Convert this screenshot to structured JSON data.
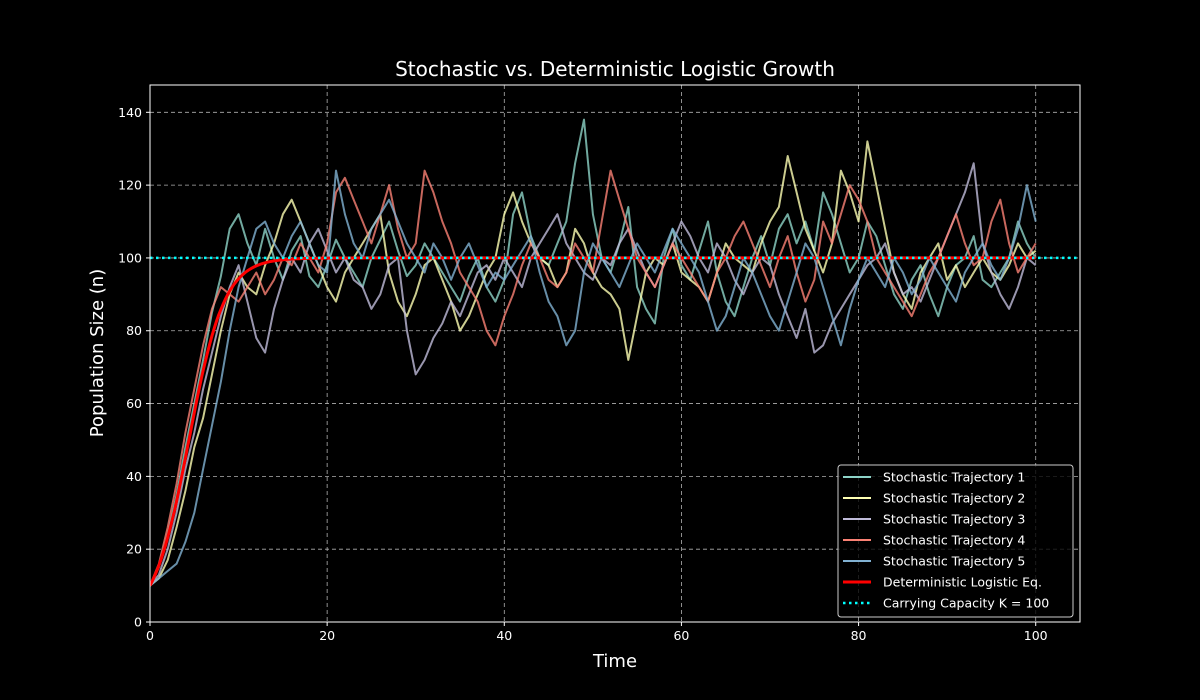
{
  "chart_data": {
    "type": "line",
    "title": "Stochastic vs. Deterministic Logistic Growth",
    "xlabel": "Time",
    "ylabel": "Population Size (n)",
    "xlim": [
      0,
      105
    ],
    "ylim": [
      0,
      147.5
    ],
    "xticks": [
      0,
      20,
      40,
      60,
      80,
      100
    ],
    "yticks": [
      0,
      20,
      40,
      60,
      80,
      100,
      120,
      140
    ],
    "grid": true,
    "legend_position": "lower-right",
    "background": "#000000",
    "deterministic": {
      "name": "Deterministic Logistic Eq.",
      "color": "#ff0000",
      "model": "logistic",
      "n0": 10,
      "r": 0.5,
      "K": 100,
      "t_range": [
        0,
        100
      ]
    },
    "carrying_capacity": {
      "name": "Carrying Capacity K = 100",
      "color": "#00ffff",
      "value": 100,
      "style": "dotted"
    },
    "x": [
      0,
      1,
      2,
      3,
      4,
      5,
      6,
      7,
      8,
      9,
      10,
      11,
      12,
      13,
      14,
      15,
      16,
      17,
      18,
      19,
      20,
      21,
      22,
      23,
      24,
      25,
      26,
      27,
      28,
      29,
      30,
      31,
      32,
      33,
      34,
      35,
      36,
      37,
      38,
      39,
      40,
      41,
      42,
      43,
      44,
      45,
      46,
      47,
      48,
      49,
      50,
      51,
      52,
      53,
      54,
      55,
      56,
      57,
      58,
      59,
      60,
      61,
      62,
      63,
      64,
      65,
      66,
      67,
      68,
      69,
      70,
      71,
      72,
      73,
      74,
      75,
      76,
      77,
      78,
      79,
      80,
      81,
      82,
      83,
      84,
      85,
      86,
      87,
      88,
      89,
      90,
      91,
      92,
      93,
      94,
      95,
      96,
      97,
      98,
      99,
      100
    ],
    "series": [
      {
        "name": "Stochastic Trajectory 1",
        "color": "#8dd3c7",
        "values": [
          10,
          15,
          24,
          35,
          48,
          60,
          72,
          85,
          95,
          108,
          112,
          104,
          98,
          108,
          100,
          94,
          102,
          106,
          95,
          92,
          98,
          105,
          100,
          96,
          92,
          100,
          105,
          110,
          102,
          95,
          98,
          104,
          100,
          96,
          92,
          88,
          95,
          100,
          92,
          88,
          94,
          112,
          118,
          106,
          100,
          98,
          104,
          110,
          126,
          138,
          112,
          100,
          96,
          104,
          114,
          92,
          86,
          82,
          100,
          108,
          98,
          94,
          102,
          110,
          96,
          88,
          84,
          92,
          100,
          106,
          98,
          108,
          112,
          104,
          110,
          102,
          118,
          112,
          104,
          96,
          100,
          110,
          106,
          98,
          90,
          86,
          94,
          98,
          90,
          84,
          92,
          98,
          100,
          106,
          94,
          92,
          96,
          100,
          110,
          104,
          100
        ]
      },
      {
        "name": "Stochastic Trajectory 2",
        "color": "#feffb3",
        "values": [
          10,
          12,
          17,
          26,
          36,
          48,
          56,
          68,
          80,
          90,
          96,
          92,
          90,
          98,
          104,
          112,
          116,
          110,
          104,
          98,
          92,
          88,
          96,
          100,
          104,
          108,
          112,
          96,
          88,
          84,
          90,
          98,
          100,
          94,
          88,
          80,
          84,
          90,
          96,
          100,
          112,
          118,
          110,
          104,
          100,
          98,
          92,
          96,
          108,
          104,
          96,
          92,
          90,
          86,
          72,
          84,
          96,
          100,
          98,
          104,
          96,
          94,
          92,
          88,
          96,
          104,
          100,
          98,
          96,
          104,
          110,
          114,
          128,
          118,
          108,
          102,
          96,
          104,
          124,
          118,
          110,
          132,
          120,
          108,
          96,
          90,
          86,
          96,
          100,
          104,
          94,
          98,
          92,
          96,
          100,
          96,
          94,
          98,
          104,
          100,
          102
        ]
      },
      {
        "name": "Stochastic Trajectory 3",
        "color": "#bfbbd9",
        "values": [
          10,
          13,
          20,
          30,
          42,
          52,
          64,
          74,
          84,
          92,
          98,
          88,
          78,
          74,
          86,
          94,
          100,
          96,
          104,
          108,
          102,
          96,
          100,
          94,
          92,
          86,
          90,
          98,
          100,
          80,
          68,
          72,
          78,
          82,
          88,
          84,
          90,
          96,
          98,
          94,
          100,
          96,
          92,
          100,
          104,
          108,
          112,
          104,
          100,
          96,
          94,
          100,
          98,
          104,
          108,
          102,
          96,
          92,
          98,
          104,
          110,
          106,
          100,
          96,
          104,
          100,
          94,
          90,
          96,
          100,
          98,
          90,
          84,
          78,
          86,
          74,
          76,
          82,
          86,
          90,
          94,
          98,
          100,
          104,
          96,
          90,
          92,
          88,
          94,
          100,
          106,
          112,
          118,
          126,
          104,
          96,
          90,
          86,
          92,
          100,
          98
        ]
      },
      {
        "name": "Stochastic Trajectory 4",
        "color": "#fa8174",
        "values": [
          10,
          16,
          26,
          38,
          52,
          64,
          76,
          86,
          92,
          90,
          88,
          92,
          96,
          90,
          94,
          100,
          98,
          104,
          100,
          96,
          104,
          118,
          122,
          116,
          110,
          104,
          112,
          120,
          108,
          100,
          104,
          124,
          118,
          110,
          104,
          96,
          92,
          88,
          80,
          76,
          84,
          90,
          98,
          104,
          100,
          94,
          92,
          96,
          104,
          100,
          96,
          110,
          124,
          116,
          108,
          100,
          96,
          92,
          98,
          104,
          100,
          96,
          92,
          88,
          96,
          100,
          106,
          110,
          104,
          98,
          92,
          100,
          106,
          96,
          88,
          94,
          110,
          104,
          112,
          120,
          116,
          110,
          100,
          96,
          92,
          88,
          84,
          90,
          96,
          100,
          106,
          112,
          104,
          98,
          100,
          110,
          116,
          104,
          96,
          100,
          104
        ]
      },
      {
        "name": "Stochastic Trajectory 5",
        "color": "#81b1d2",
        "values": [
          10,
          12,
          14,
          16,
          22,
          30,
          42,
          54,
          66,
          80,
          92,
          100,
          108,
          110,
          104,
          100,
          106,
          110,
          104,
          98,
          96,
          124,
          112,
          104,
          100,
          108,
          112,
          116,
          110,
          104,
          100,
          96,
          104,
          100,
          94,
          100,
          104,
          98,
          92,
          96,
          94,
          98,
          102,
          106,
          96,
          88,
          84,
          76,
          80,
          96,
          104,
          100,
          96,
          92,
          98,
          104,
          100,
          96,
          102,
          108,
          104,
          100,
          96,
          88,
          80,
          84,
          92,
          100,
          96,
          90,
          84,
          80,
          88,
          96,
          104,
          100,
          92,
          84,
          76,
          86,
          94,
          100,
          96,
          92,
          100,
          96,
          90,
          94,
          100,
          96,
          92,
          88,
          96,
          100,
          104,
          98,
          94,
          100,
          108,
          120,
          110
        ]
      }
    ]
  }
}
